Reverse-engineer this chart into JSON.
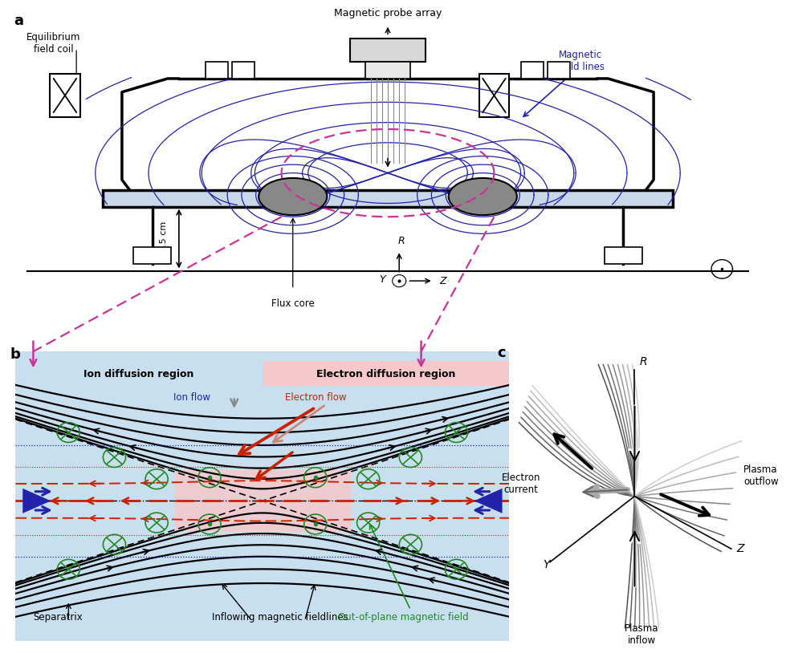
{
  "bg": "#ffffff",
  "labels": {
    "a": "a",
    "b": "b",
    "c": "c"
  },
  "panel_a": {
    "probe_label": "Magnetic probe array",
    "eq_coil_label": "Equilibrium\nfield coil",
    "mag_field_label": "Magnetic\nfield lines",
    "dim_label": "37.5 cm",
    "flux_core_label": "Flux core",
    "blue": "#2222aa",
    "pink_dash": "#cc3399",
    "vessel_plate": "#c8d8e8",
    "flux_gray": "#888888"
  },
  "panel_b": {
    "ion_diff": "Ion diffusion region",
    "elec_diff": "Electron diffusion region",
    "ion_flow": "Ion flow",
    "elec_flow": "Electron flow",
    "sep": "Separatrix",
    "inflow": "Inflowing magnetic fieldlines",
    "oop": "Out-of-plane magnetic field",
    "blue_bg": "#c8dff0",
    "pink_bg": "#f5c8cc",
    "red": "#cc2200",
    "blue": "#2222aa",
    "green": "#228822",
    "pink_dash": "#cc3399"
  },
  "panel_c": {
    "elec_current": "Electron\ncurrent",
    "plasma_out": "Plasma\noutflow",
    "plasma_in": "Plasma\ninflow",
    "R": "R",
    "Y": "Y",
    "Z": "Z"
  }
}
